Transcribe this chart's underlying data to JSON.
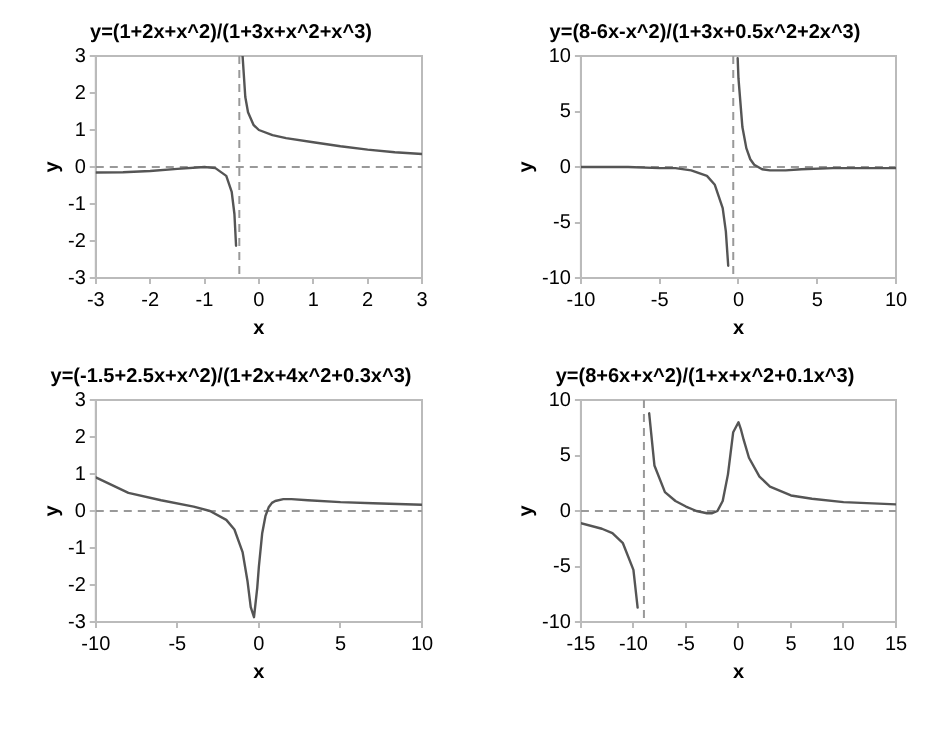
{
  "chart_data": [
    {
      "type": "line",
      "title": "y=(1+2x+x^2)/(1+3x+x^2+x^3)",
      "xlabel": "x",
      "ylabel": "y",
      "xlim": [
        -3,
        3
      ],
      "ylim": [
        -3,
        3
      ],
      "xticks": [
        -3,
        -2,
        -1,
        0,
        1,
        2,
        3
      ],
      "yticks": [
        -3,
        -2,
        -1,
        0,
        1,
        2,
        3
      ],
      "grid": false,
      "legend": false,
      "marker": "none",
      "line_style": "solid",
      "x": [
        -3,
        -2.5,
        -2,
        -1.5,
        -1,
        -0.8,
        -0.6,
        -0.5,
        -0.45,
        -0.42,
        -0.36,
        -0.3,
        -0.25,
        -0.2,
        -0.1,
        0,
        0.25,
        0.5,
        1,
        1.5,
        2,
        2.5,
        3
      ],
      "series": [
        {
          "color": "#555555",
          "values": [
            -0.15,
            -0.14,
            -0.11,
            -0.05,
            0,
            -0.03,
            -0.24,
            -0.67,
            -1.27,
            -2.13,
            null,
            3.0,
            1.89,
            1.48,
            1.14,
            1,
            0.86,
            0.78,
            0.67,
            0.56,
            0.47,
            0.4,
            0.35
          ]
        }
      ],
      "ref_lines": [
        {
          "axis": "y",
          "value": 0,
          "color": "#999999",
          "line_style": "dashed"
        },
        {
          "axis": "x",
          "value": -0.36,
          "color": "#999999",
          "line_style": "dashed"
        }
      ]
    },
    {
      "type": "line",
      "title": "y=(8-6x-x^2)/(1+3x+0.5x^2+2x^3)",
      "xlabel": "x",
      "ylabel": "y",
      "xlim": [
        -10,
        10
      ],
      "ylim": [
        -10,
        10
      ],
      "xticks": [
        -10,
        -5,
        0,
        5,
        10
      ],
      "yticks": [
        -10,
        -5,
        0,
        5,
        10
      ],
      "grid": false,
      "legend": false,
      "marker": "none",
      "line_style": "solid",
      "x": [
        -10,
        -7,
        -5,
        -4,
        -3,
        -2,
        -1.5,
        -1,
        -0.8,
        -0.65,
        -0.33,
        -0.05,
        0,
        0.25,
        0.5,
        0.75,
        1,
        1.5,
        2,
        3,
        4,
        6,
        8,
        10
      ],
      "series": [
        {
          "color": "#555555",
          "values": [
            0,
            0,
            -0.1,
            -0.1,
            -0.3,
            -0.8,
            -1.6,
            -3.7,
            -5.8,
            -8.9,
            null,
            9.8,
            8,
            3.6,
            1.7,
            0.7,
            0.2,
            -0.2,
            -0.3,
            -0.3,
            -0.2,
            -0.1,
            -0.1,
            -0.1
          ]
        }
      ],
      "ref_lines": [
        {
          "axis": "y",
          "value": 0,
          "color": "#999999",
          "line_style": "dashed"
        },
        {
          "axis": "x",
          "value": -0.33,
          "color": "#999999",
          "line_style": "dashed"
        }
      ]
    },
    {
      "type": "line",
      "title": "y=(-1.5+2.5x+x^2)/(1+2x+4x^2+0.3x^3)",
      "xlabel": "x",
      "ylabel": "y",
      "xlim": [
        -10,
        10
      ],
      "ylim": [
        -3,
        3
      ],
      "xticks": [
        -10,
        -5,
        0,
        5,
        10
      ],
      "yticks": [
        -3,
        -2,
        -1,
        0,
        1,
        2,
        3
      ],
      "grid": false,
      "legend": false,
      "marker": "none",
      "line_style": "solid",
      "x": [
        -10,
        -8,
        -6,
        -4,
        -3,
        -2,
        -1.5,
        -1,
        -0.7,
        -0.5,
        -0.3,
        -0.1,
        0,
        0.2,
        0.4,
        0.6,
        0.8,
        1,
        1.5,
        2,
        3,
        5,
        7,
        10
      ],
      "series": [
        {
          "color": "#555555",
          "values": [
            0.91,
            0.49,
            0.29,
            0.12,
            0,
            -0.24,
            -0.5,
            -1.11,
            -1.89,
            -2.6,
            -2.87,
            -2.07,
            -1.5,
            -0.61,
            -0.14,
            0.1,
            0.22,
            0.27,
            0.32,
            0.32,
            0.29,
            0.24,
            0.21,
            0.17
          ]
        }
      ],
      "ref_lines": [
        {
          "axis": "y",
          "value": 0,
          "color": "#999999",
          "line_style": "dashed"
        }
      ]
    },
    {
      "type": "line",
      "title": "y=(8+6x+x^2)/(1+x+x^2+0.1x^3)",
      "xlabel": "x",
      "ylabel": "y",
      "xlim": [
        -15,
        15
      ],
      "ylim": [
        -10,
        10
      ],
      "xticks": [
        -15,
        -10,
        -5,
        0,
        5,
        10,
        15
      ],
      "yticks": [
        -10,
        -5,
        0,
        5,
        10
      ],
      "grid": false,
      "legend": false,
      "marker": "none",
      "line_style": "solid",
      "x": [
        -15,
        -13,
        -12,
        -11,
        -10,
        -9.6,
        -9,
        -8.5,
        -8,
        -7,
        -6,
        -5,
        -4,
        -3,
        -2.5,
        -2,
        -1.5,
        -1,
        -0.5,
        0,
        0.25,
        0.5,
        1,
        2,
        3,
        5,
        7,
        10,
        15
      ],
      "series": [
        {
          "color": "#555555",
          "values": [
            -1.1,
            -1.6,
            -2.0,
            -2.9,
            -5.3,
            -8.7,
            null,
            8.8,
            4.1,
            1.7,
            0.9,
            0.4,
            0,
            -0.2,
            -0.2,
            0,
            0.9,
            3.3,
            7.1,
            8,
            7.3,
            6.4,
            4.8,
            3.1,
            2.2,
            1.4,
            1.1,
            0.8,
            0.6
          ]
        }
      ],
      "ref_lines": [
        {
          "axis": "y",
          "value": 0,
          "color": "#999999",
          "line_style": "dashed"
        },
        {
          "axis": "x",
          "value": -9,
          "color": "#999999",
          "line_style": "dashed"
        }
      ]
    }
  ]
}
